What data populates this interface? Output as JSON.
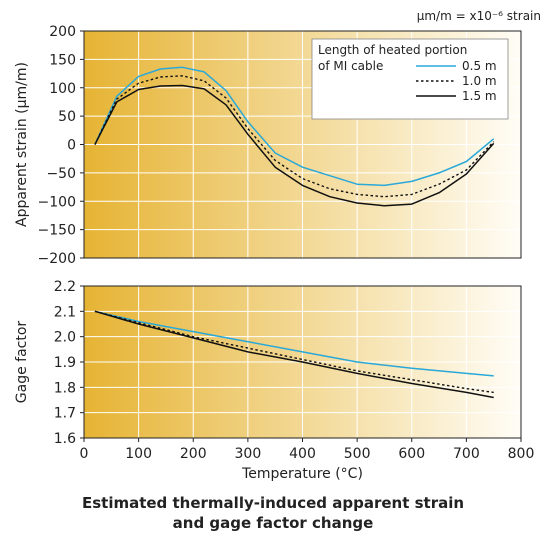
{
  "figure": {
    "unit_note": "μm/m = x10⁻⁶ strain",
    "caption_line1": "Estimated thermally-induced apparent strain",
    "caption_line2": "and gage factor change",
    "colors": {
      "gradient_start": "#e6b434",
      "gradient_end": "#fffdf6",
      "grid": "#ffffff",
      "series_0_5m": "#2aa8d8",
      "series_1_0m": "#111111",
      "series_1_5m": "#111111"
    }
  },
  "chart_data": [
    {
      "type": "line",
      "ylabel": "Apparent strain (μm/m)",
      "xlim": [
        0,
        800
      ],
      "ylim": [
        -200,
        200
      ],
      "yticks": [
        "200",
        "150",
        "100",
        "50",
        "0",
        "−50",
        "−100",
        "−150",
        "−200"
      ],
      "legend": {
        "title_line1": "Length of heated portion",
        "title_line2": "of MI cable",
        "placement": "top-right"
      },
      "series": [
        {
          "name": "0.5 m",
          "style": "solid-blue",
          "x": [
            20,
            60,
            100,
            140,
            180,
            220,
            260,
            300,
            350,
            400,
            450,
            500,
            550,
            600,
            650,
            700,
            750
          ],
          "y": [
            0,
            85,
            120,
            133,
            136,
            128,
            95,
            40,
            -15,
            -40,
            -55,
            -70,
            -72,
            -65,
            -50,
            -30,
            10
          ]
        },
        {
          "name": "1.0 m",
          "style": "dotted-black",
          "x": [
            20,
            60,
            100,
            140,
            180,
            220,
            260,
            300,
            350,
            400,
            450,
            500,
            550,
            600,
            650,
            700,
            750
          ],
          "y": [
            0,
            80,
            108,
            119,
            121,
            112,
            82,
            28,
            -28,
            -60,
            -78,
            -88,
            -92,
            -88,
            -70,
            -45,
            5
          ]
        },
        {
          "name": "1.5 m",
          "style": "solid-black",
          "x": [
            20,
            60,
            100,
            140,
            180,
            220,
            260,
            300,
            350,
            400,
            450,
            500,
            550,
            600,
            650,
            700,
            750
          ],
          "y": [
            0,
            75,
            97,
            103,
            104,
            98,
            70,
            18,
            -40,
            -72,
            -92,
            -103,
            -108,
            -105,
            -85,
            -52,
            2
          ]
        }
      ]
    },
    {
      "type": "line",
      "xlabel": "Temperature (°C)",
      "ylabel": "Gage factor",
      "xlim": [
        0,
        800
      ],
      "ylim": [
        1.6,
        2.2
      ],
      "xticks": [
        "0",
        "100",
        "200",
        "300",
        "400",
        "500",
        "600",
        "700",
        "800"
      ],
      "yticks": [
        "2.2",
        "2.1",
        "2.0",
        "1.9",
        "1.8",
        "1.7",
        "1.6"
      ],
      "series": [
        {
          "name": "0.5 m",
          "style": "solid-blue",
          "x": [
            20,
            100,
            200,
            300,
            400,
            500,
            600,
            700,
            750
          ],
          "y": [
            2.1,
            2.06,
            2.02,
            1.98,
            1.94,
            1.9,
            1.875,
            1.855,
            1.845
          ]
        },
        {
          "name": "1.0 m",
          "style": "dotted-black",
          "x": [
            20,
            100,
            200,
            300,
            400,
            500,
            600,
            700,
            750
          ],
          "y": [
            2.1,
            2.055,
            2.0,
            1.955,
            1.91,
            1.865,
            1.83,
            1.795,
            1.78
          ]
        },
        {
          "name": "1.5 m",
          "style": "solid-black",
          "x": [
            20,
            100,
            200,
            300,
            400,
            500,
            600,
            700,
            750
          ],
          "y": [
            2.1,
            2.05,
            1.995,
            1.94,
            1.9,
            1.855,
            1.815,
            1.78,
            1.76
          ]
        }
      ]
    }
  ]
}
